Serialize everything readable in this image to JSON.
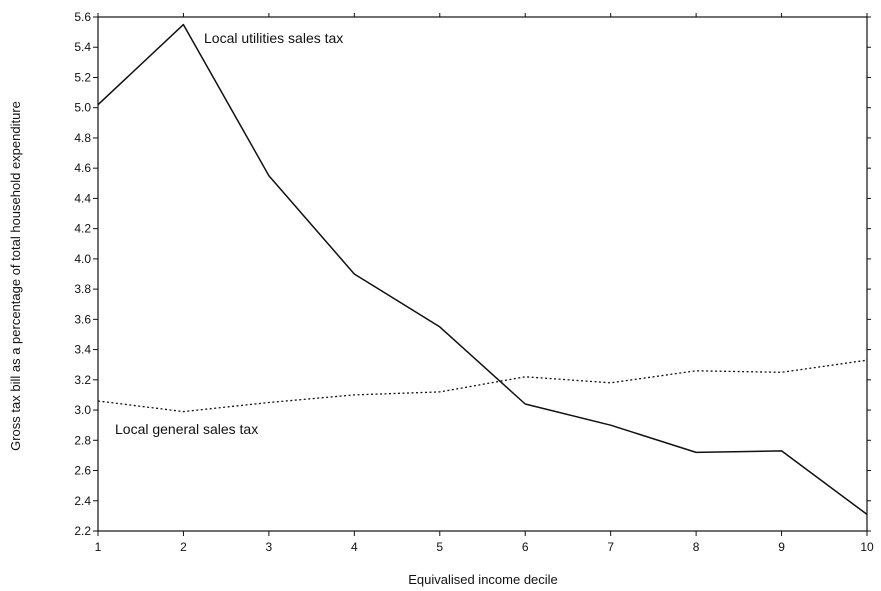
{
  "chart_data": {
    "type": "line",
    "title": "",
    "xlabel": "Equivalised income decile",
    "ylabel": "Gross tax bill as a percentage of total household expenditure",
    "x": [
      1,
      2,
      3,
      4,
      5,
      6,
      7,
      8,
      9,
      10
    ],
    "x_ticks": [
      "1",
      "2",
      "3",
      "4",
      "5",
      "6",
      "7",
      "8",
      "9",
      "10"
    ],
    "xlim": [
      1,
      10
    ],
    "ylim": [
      2.2,
      5.6
    ],
    "y_ticks": [
      "2.2",
      "2.4",
      "2.6",
      "2.8",
      "3.0",
      "3.2",
      "3.4",
      "3.6",
      "3.8",
      "4.0",
      "4.2",
      "4.4",
      "4.6",
      "4.8",
      "5.0",
      "5.2",
      "5.4",
      "5.6"
    ],
    "grid": false,
    "legend": "none",
    "series": [
      {
        "name": "Local utilities sales tax",
        "style": "solid",
        "color": "#111111",
        "values": [
          5.02,
          5.55,
          4.55,
          3.9,
          3.55,
          3.04,
          2.9,
          2.72,
          2.73,
          2.31
        ]
      },
      {
        "name": "Local general sales tax",
        "style": "dotted",
        "color": "#111111",
        "values": [
          3.06,
          2.99,
          3.05,
          3.1,
          3.12,
          3.22,
          3.18,
          3.26,
          3.25,
          3.33
        ]
      }
    ],
    "annotations": [
      {
        "text": "Local utilities sales tax",
        "series": 0
      },
      {
        "text": "Local general sales tax",
        "series": 1
      }
    ]
  }
}
